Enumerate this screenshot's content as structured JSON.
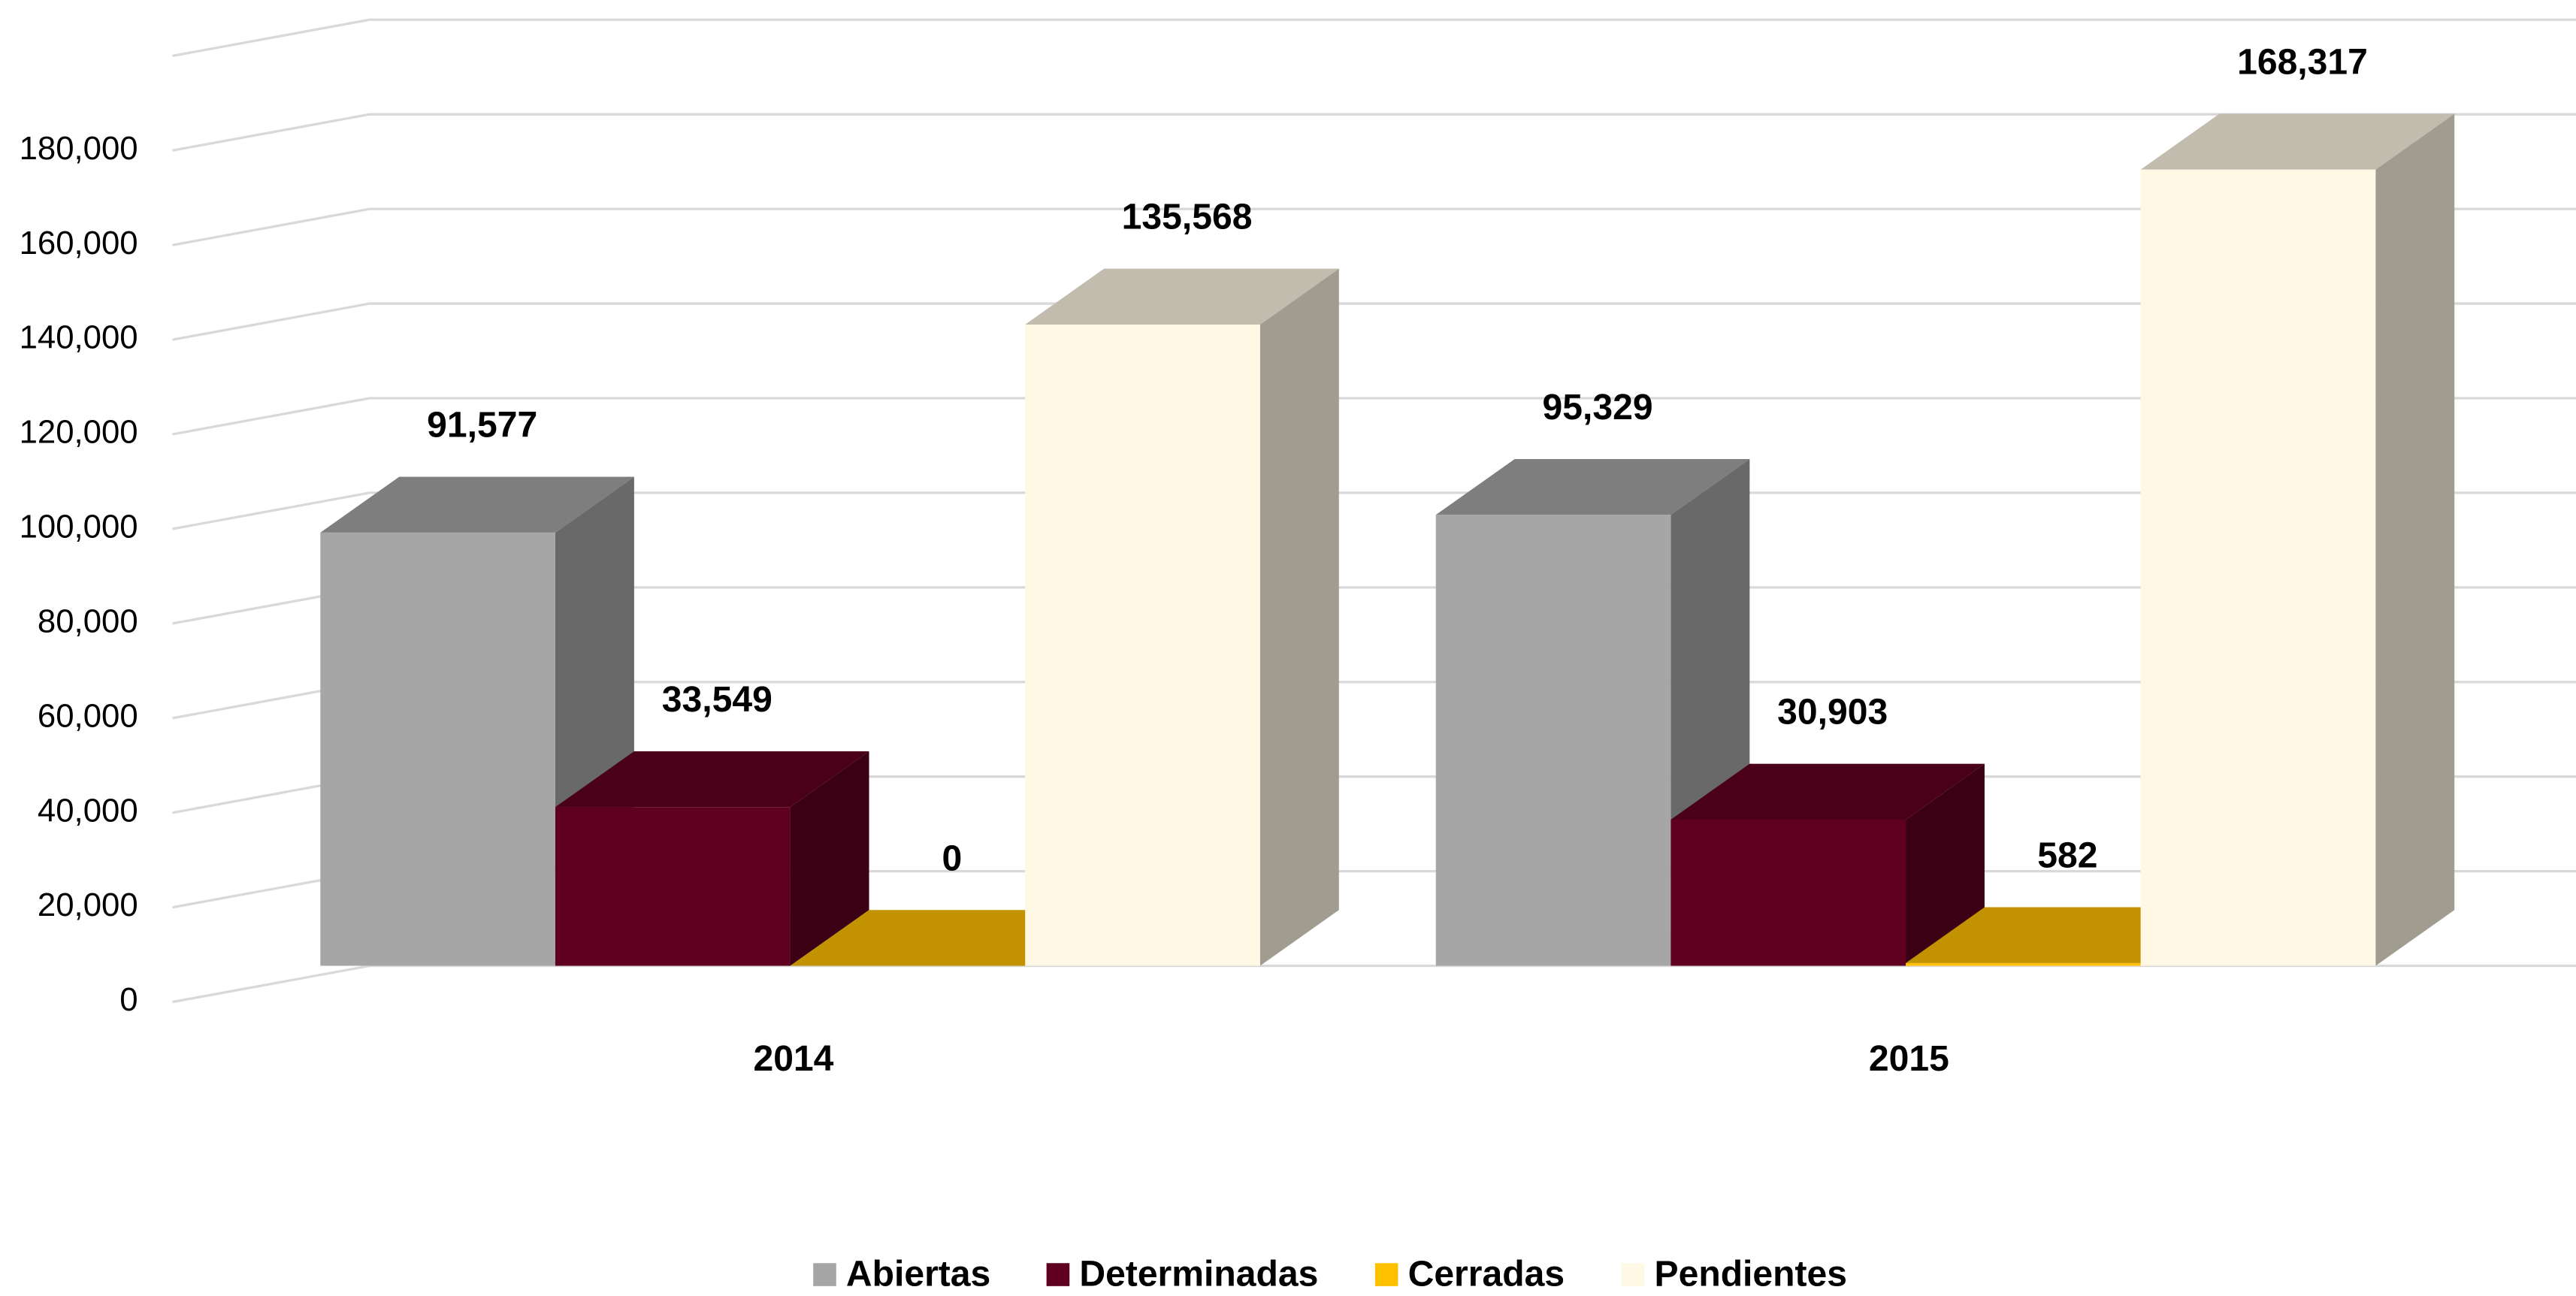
{
  "chart_data": {
    "type": "bar3d",
    "categories": [
      "2014",
      "2015"
    ],
    "series": [
      {
        "name": "Abiertas",
        "color": "#a6a6a6",
        "values": [
          91577,
          95329
        ],
        "value_labels": [
          "91,577",
          "95,329"
        ]
      },
      {
        "name": "Determinadas",
        "color": "#600020",
        "values": [
          33549,
          30903
        ],
        "value_labels": [
          "33,549",
          "30,903"
        ]
      },
      {
        "name": "Cerradas",
        "color": "#ffc000",
        "values": [
          0,
          582
        ],
        "value_labels": [
          "0",
          "582"
        ]
      },
      {
        "name": "Pendientes",
        "color": "#fff8e5",
        "values": [
          135568,
          168317
        ],
        "value_labels": [
          "135,568",
          "168,317"
        ]
      }
    ],
    "ylim": [
      0,
      200000
    ],
    "yticks": [
      0,
      {
        "value": 20000,
        "label": "20,000"
      },
      {
        "value": 40000,
        "label": "40,000"
      },
      {
        "value": 60000,
        "label": "60,000"
      },
      {
        "value": 80000,
        "label": "80,000"
      },
      {
        "value": 100000,
        "label": "100,000"
      },
      {
        "value": 120000,
        "label": "120,000"
      },
      {
        "value": 140000,
        "label": "140,000"
      },
      {
        "value": 160000,
        "label": "160,000"
      },
      {
        "value": 180000,
        "label": "180,000"
      }
    ],
    "grid": true,
    "legend": "bottom"
  }
}
